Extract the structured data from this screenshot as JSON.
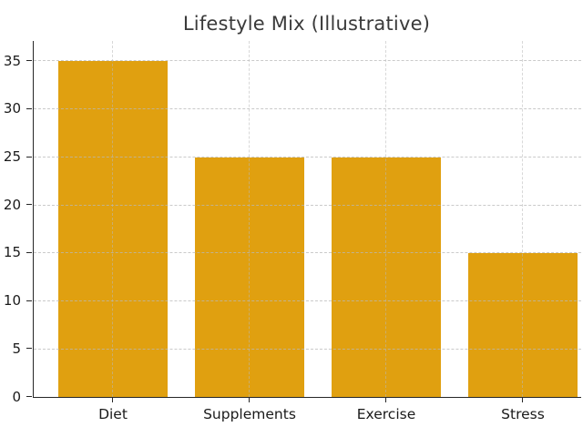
{
  "page": {
    "background_color": "#ffffff"
  },
  "chart_data": {
    "type": "bar",
    "title": "Lifestyle Mix (Illustrative)",
    "categories": [
      "Diet",
      "Supplements",
      "Exercise",
      "Stress"
    ],
    "values": [
      35,
      25,
      25,
      15
    ],
    "xlabel": "",
    "ylabel": "",
    "yticks": [
      0,
      5,
      10,
      15,
      20,
      25,
      30,
      35
    ],
    "ylim": [
      0,
      37.1
    ],
    "bar_color": "#E0A010",
    "grid": "dashed-both-axes",
    "grid_color": "#b9b9b9",
    "spine_color": "#262626",
    "title_color": "#3a3a3a",
    "tick_label_color": "#1a1a1a",
    "legend_position": "none"
  }
}
